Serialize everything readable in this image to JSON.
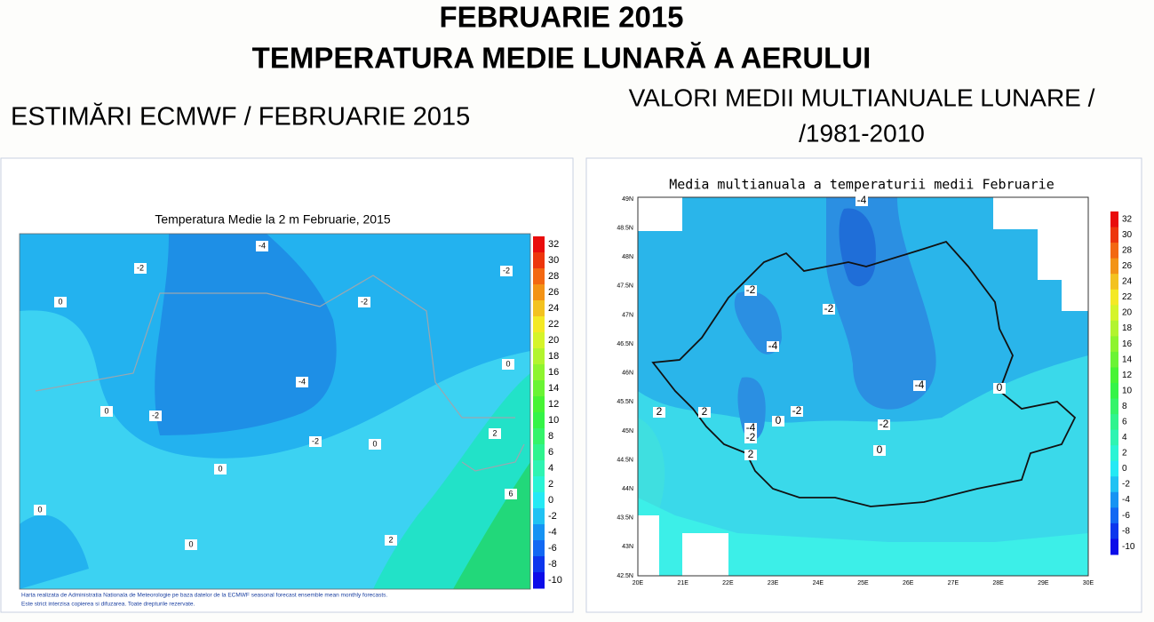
{
  "header": {
    "title_line1": "FEBRUARIE 2015",
    "title_line2": "TEMPERATURA MEDIE LUNARĂ A AERULUI",
    "left_caption": "ESTIMĂRI ECMWF / FEBRUARIE 2015",
    "right_caption_line1": "VALORI MEDII MULTIANUALE LUNARE /",
    "right_caption_line2": "/1981-2010"
  },
  "left_map": {
    "title": "Temperatura Medie la 2 m Februarie, 2015",
    "colorbar_ticks": [
      32,
      30,
      28,
      26,
      24,
      22,
      20,
      18,
      16,
      14,
      12,
      10,
      8,
      6,
      4,
      2,
      0,
      -2,
      -4,
      -6,
      -8,
      -10
    ],
    "contour_labels": [
      0,
      -2,
      -4,
      -2,
      -2,
      0,
      0,
      -2,
      -4,
      -2,
      0,
      0,
      0,
      0,
      2,
      2,
      6
    ],
    "footer_line1": "Harta realizata de Administratia Nationala de Meteorologie pe baza datelor de la ECMWF seasonal forecast ensemble mean monthly forecasts.",
    "footer_line2": "Este strict interzisa copierea si difuzarea. Toate drepturile rezervate."
  },
  "right_map": {
    "title": "Media multianuala a temperaturii medii Februarie",
    "colorbar_ticks": [
      32,
      30,
      28,
      26,
      24,
      22,
      20,
      18,
      16,
      14,
      12,
      10,
      8,
      6,
      4,
      2,
      0,
      -2,
      -4,
      -6,
      -8,
      -10
    ],
    "lat_labels": [
      "49N",
      "48.5N",
      "48N",
      "47.5N",
      "47N",
      "46.5N",
      "46N",
      "45.5N",
      "45N",
      "44.5N",
      "44N",
      "43.5N",
      "43N",
      "42.5N"
    ],
    "lon_labels": [
      "20E",
      "21E",
      "22E",
      "23E",
      "24E",
      "25E",
      "26E",
      "27E",
      "28E",
      "29E",
      "30E"
    ],
    "contour_labels": [
      -4,
      -2,
      -2,
      -4,
      -4,
      0,
      2,
      2,
      -2,
      0,
      -4,
      -2,
      -2,
      2,
      0
    ]
  }
}
